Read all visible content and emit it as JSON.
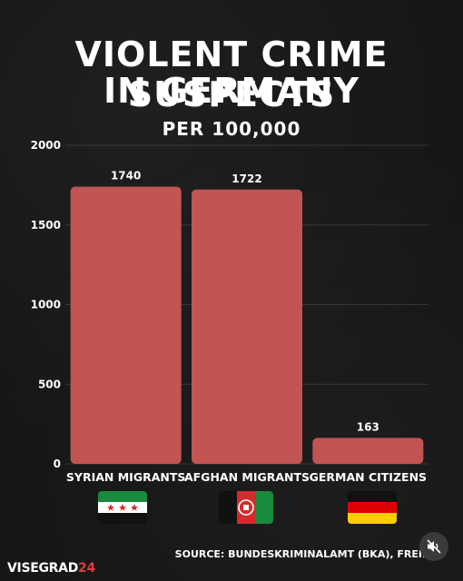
{
  "header": {
    "title_line1": "VIOLENT CRIME SUSPECTS",
    "title_line2": "IN GERMANY",
    "subtitle": "PER 100,000"
  },
  "chart_data": {
    "type": "bar",
    "categories": [
      "SYRIAN MIGRANTS",
      "AFGHAN MIGRANTS",
      "GERMAN CITIZENS"
    ],
    "values": [
      1740,
      1722,
      163
    ],
    "ylim": [
      0,
      2000
    ],
    "yticks": [
      0,
      500,
      1000,
      1500,
      2000
    ],
    "grid": true,
    "bar_color": "#c25454",
    "data_labels": [
      "1740",
      "1722",
      "163"
    ]
  },
  "flags": [
    {
      "icon": "syria-flag-icon",
      "colors": [
        "#1a8a3d",
        "#ffffff",
        "#111111",
        "#d42c2c"
      ]
    },
    {
      "icon": "afghanistan-flag-icon",
      "colors": [
        "#111111",
        "#d42c2c",
        "#1a8a3d"
      ]
    },
    {
      "icon": "germany-flag-icon",
      "colors": [
        "#111111",
        "#dd0000",
        "#ffcc00"
      ]
    }
  ],
  "footer": {
    "source": "SOURCE:  BUNDESKRIMINALAMT (BKA), FREIL",
    "brand_text": "VISEGRAD",
    "brand_num": "24",
    "mute_icon": "speaker-muted-icon"
  }
}
